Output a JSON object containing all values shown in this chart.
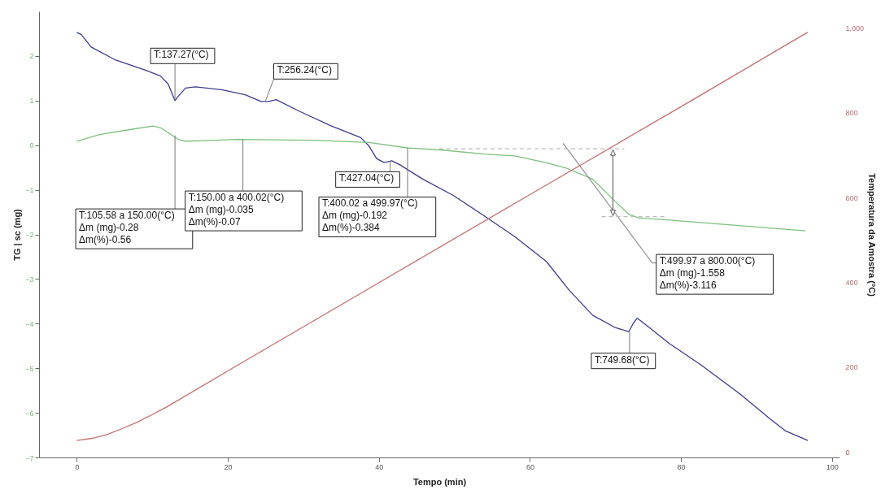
{
  "chart_data": {
    "type": "line",
    "xlabel": "Tempo (min)",
    "ylabel": "TG | sc (mg)",
    "y2label": "Temperatura da Amostra (°C)",
    "xlim": [
      -5,
      101
    ],
    "xticks": [
      0,
      20,
      40,
      60,
      80,
      100
    ],
    "ylim": [
      -7,
      3
    ],
    "yticks": [
      -7,
      -6,
      -5,
      -4,
      -3,
      -2,
      -1,
      0,
      1,
      2
    ],
    "y2lim": [
      -13,
      1039
    ],
    "y2ticks": [
      0,
      200,
      400,
      600,
      800,
      {
        "value": 1000,
        "label": "1,000"
      }
    ],
    "grid": false,
    "legend": false,
    "marker": "none",
    "series": [
      {
        "color": "#3c3c8c",
        "x": [
          0,
          0.6,
          1.9,
          5,
          9.1,
          11.1,
          12.1,
          13,
          13.4,
          14.4,
          15.7,
          19.3,
          22.3,
          24.4,
          25.4,
          26.4,
          29.5,
          33.6,
          37.6,
          38.7,
          39.7,
          40.7,
          41.7,
          42.8,
          45.8,
          49.9,
          54,
          58,
          62.2,
          65.2,
          68.3,
          71.3,
          73.1,
          73.7,
          74.2,
          74.7,
          78.5,
          82.6,
          87.7,
          91.7,
          93.8,
          96.8
        ],
        "values": [
          2.53,
          2.48,
          2.2,
          1.92,
          1.68,
          1.55,
          1.37,
          1.0,
          1.09,
          1.28,
          1.31,
          1.24,
          1.13,
          0.98,
          0.98,
          1.02,
          0.76,
          0.44,
          0.17,
          -0.02,
          -0.3,
          -0.39,
          -0.35,
          -0.44,
          -0.76,
          -1.13,
          -1.59,
          -2.05,
          -2.61,
          -3.25,
          -3.81,
          -4.09,
          -4.18,
          -3.99,
          -3.88,
          -3.94,
          -4.45,
          -4.92,
          -5.56,
          -6.12,
          -6.4,
          -6.62
        ]
      },
      {
        "color": "#7fbf7f",
        "x": [
          0,
          3,
          7,
          10.1,
          11.1,
          12.3,
          13.4,
          14.4,
          21.3,
          31.5,
          38.7,
          43.8,
          48.4,
          54,
          58,
          62.1,
          64.9,
          68.3,
          71.3,
          73.1,
          74.4,
          78.5,
          96.5
        ],
        "values": [
          0.09,
          0.24,
          0.35,
          0.43,
          0.39,
          0.26,
          0.13,
          0.09,
          0.13,
          0.11,
          0.06,
          -0.06,
          -0.11,
          -0.2,
          -0.24,
          -0.39,
          -0.52,
          -0.76,
          -1.26,
          -1.55,
          -1.63,
          -1.68,
          -1.92
        ]
      },
      {
        "color": "#c07070",
        "axis": "y2",
        "x": [
          0,
          2,
          4,
          6,
          8,
          10,
          12,
          20,
          40,
          60,
          80,
          96.8
        ],
        "values": [
          27,
          32,
          41,
          55,
          70,
          88,
          107,
          191,
          399,
          607,
          814,
          990
        ]
      },
      {
        "type": "line",
        "color": "#9a9a9a",
        "x": [
          64.4,
          76.2
        ],
        "values": [
          0.04,
          -2.64
        ]
      },
      {
        "type": "line",
        "color": "#bbbbbb",
        "line_style": "dashed",
        "x": [
          48,
          72.5
        ],
        "values": [
          -0.08,
          -0.08
        ]
      },
      {
        "type": "line",
        "color": "#bbbbbb",
        "line_style": "dashed",
        "x": [
          69.5,
          78
        ],
        "values": [
          -1.6,
          -1.6
        ]
      }
    ],
    "annotations": [
      {
        "text": "T:137.27(°C)",
        "x": 13,
        "y": 1.0
      },
      {
        "text": "T:256.24(°C)",
        "x": 25,
        "y": 1.0
      },
      {
        "text": "T:427.04(°C)",
        "x": 41.5,
        "y": -0.35
      },
      {
        "text": "T:749.68(°C)",
        "x": 73.2,
        "y": -4.18
      },
      {
        "text": "T:105.58  a  150.00(°C)\nΔm (mg)-0.28\nΔm(%)-0.56",
        "x": 13,
        "y": 0.22
      },
      {
        "text": "T:150.00  a  400.02(°C)\nΔm (mg)-0.035\nΔm(%)-0.07",
        "x": 22,
        "y": 0.13
      },
      {
        "text": "T:400.02  a  499.97(°C)\nΔm (mg)-0.192\nΔm(%)-0.384",
        "x": 43.8,
        "y": -0.06
      },
      {
        "text": "T:499.97  a  800.00(°C)\nΔm (mg)-1.558\nΔm(%)-3.116",
        "x": 76.2,
        "y": -2.64
      }
    ]
  }
}
